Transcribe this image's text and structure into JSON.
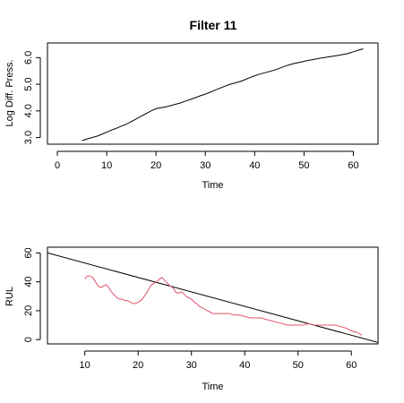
{
  "title": "Filter 11",
  "chart_data": [
    {
      "type": "line",
      "title": "Filter 11",
      "xlabel": "Time",
      "ylabel": "Log Diff. Press.",
      "xlim": [
        -2,
        65
      ],
      "ylim": [
        2.75,
        6.55
      ],
      "x_ticks": [
        "0",
        "10",
        "20",
        "30",
        "40",
        "50",
        "60"
      ],
      "x_tick_values": [
        0,
        10,
        20,
        30,
        40,
        50,
        60
      ],
      "y_ticks": [
        "3.0",
        "4.0",
        "5.0",
        "6.0"
      ],
      "y_tick_values": [
        3.0,
        4.0,
        5.0,
        6.0
      ],
      "grid": false,
      "series": [
        {
          "color": "#000000",
          "x": [
            5,
            6,
            7,
            8,
            9,
            10,
            11,
            12,
            13,
            14,
            15,
            16,
            17,
            18,
            19,
            20,
            21,
            22,
            23,
            24,
            25,
            26,
            27,
            28,
            29,
            30,
            31,
            32,
            33,
            34,
            35,
            36,
            37,
            38,
            39,
            40,
            41,
            42,
            43,
            44,
            45,
            46,
            47,
            48,
            49,
            50,
            51,
            52,
            53,
            54,
            55,
            56,
            57,
            58,
            59,
            60,
            61,
            62
          ],
          "y": [
            2.88,
            2.95,
            3.0,
            3.05,
            3.12,
            3.2,
            3.28,
            3.35,
            3.43,
            3.5,
            3.6,
            3.7,
            3.8,
            3.9,
            4.0,
            4.08,
            4.12,
            4.15,
            4.2,
            4.25,
            4.3,
            4.37,
            4.43,
            4.5,
            4.57,
            4.63,
            4.7,
            4.78,
            4.86,
            4.93,
            5.0,
            5.05,
            5.1,
            5.17,
            5.25,
            5.32,
            5.38,
            5.43,
            5.48,
            5.53,
            5.6,
            5.67,
            5.73,
            5.78,
            5.82,
            5.86,
            5.9,
            5.93,
            5.97,
            6.0,
            6.03,
            6.06,
            6.09,
            6.12,
            6.16,
            6.22,
            6.28,
            6.33
          ]
        }
      ]
    },
    {
      "type": "line",
      "title": "",
      "xlabel": "Time",
      "ylabel": "RUL",
      "xlim": [
        3,
        65
      ],
      "ylim": [
        -3,
        64
      ],
      "x_ticks": [
        "10",
        "20",
        "30",
        "40",
        "50",
        "60"
      ],
      "x_tick_values": [
        10,
        20,
        30,
        40,
        50,
        60
      ],
      "y_ticks": [
        "0",
        "20",
        "40",
        "60"
      ],
      "y_tick_values": [
        0,
        20,
        40,
        60
      ],
      "grid": false,
      "series": [
        {
          "color": "#000000",
          "x": [
            3,
            65
          ],
          "y": [
            60,
            -2
          ]
        },
        {
          "color": "#df536b",
          "x": [
            10,
            10.5,
            11,
            11.5,
            12,
            12.5,
            13,
            13.5,
            14,
            14.5,
            15,
            15.5,
            16,
            16.5,
            17,
            17.5,
            18,
            18.5,
            19,
            19.5,
            20,
            20.5,
            21,
            21.5,
            22,
            22.5,
            23,
            23.5,
            24,
            24.5,
            25,
            25.5,
            26,
            26.5,
            27,
            27.5,
            28,
            28.5,
            29,
            29.5,
            30,
            30.5,
            31,
            31.5,
            32,
            32.5,
            33,
            33.5,
            34,
            35,
            36,
            37,
            38,
            39,
            40,
            41,
            42,
            43,
            44,
            45,
            46,
            47,
            48,
            49,
            50,
            51,
            52,
            53,
            54,
            55,
            56,
            57,
            58,
            59,
            60,
            61,
            62
          ],
          "y": [
            42,
            44,
            44,
            43,
            40,
            37,
            36,
            37,
            38,
            36,
            33,
            31,
            29,
            28,
            28,
            27,
            27,
            26,
            25,
            25,
            26,
            27,
            29,
            32,
            35,
            38,
            39,
            40,
            42,
            43,
            41,
            39,
            37,
            36,
            33,
            32,
            33,
            32,
            30,
            29,
            28,
            26,
            25,
            23,
            22,
            21,
            20,
            19,
            18,
            18,
            18,
            18,
            17,
            17,
            16,
            15,
            15,
            15,
            14,
            13,
            12,
            11,
            10,
            10,
            10,
            10,
            11,
            10,
            10,
            10,
            10,
            10,
            9,
            8,
            6,
            5,
            3
          ]
        }
      ]
    }
  ]
}
